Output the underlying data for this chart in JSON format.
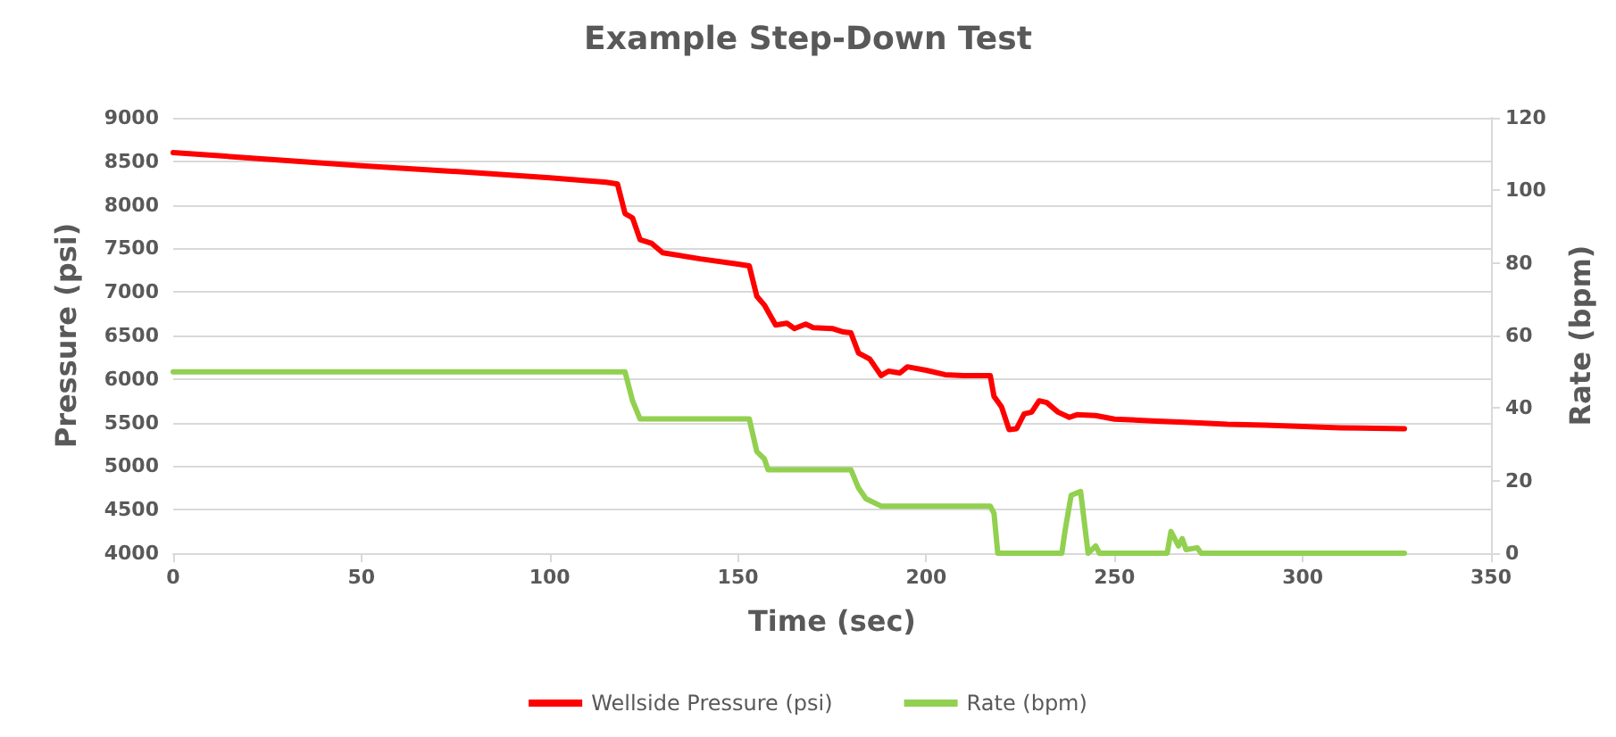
{
  "chart_data": {
    "type": "line",
    "title": "Example Step-Down Test",
    "xlabel": "Time (sec)",
    "ylabel": "Pressure (psi)",
    "y2label": "Rate (bpm)",
    "xlim": [
      0,
      350
    ],
    "xticks": [
      0,
      50,
      100,
      150,
      200,
      250,
      300,
      350
    ],
    "ylim": [
      4000,
      9000
    ],
    "yticks": [
      4000,
      4500,
      5000,
      5500,
      6000,
      6500,
      7000,
      7500,
      8000,
      8500,
      9000
    ],
    "y2lim": [
      0,
      120
    ],
    "y2ticks": [
      0,
      20,
      40,
      60,
      80,
      100,
      120
    ],
    "grid": "y",
    "legend": "bottom",
    "marker": "none",
    "line_style": "solid",
    "series": [
      {
        "name": "Wellside Pressure (psi)",
        "color": "#ff0000",
        "x": [
          0,
          20,
          50,
          80,
          100,
          115,
          118,
          120,
          122,
          124,
          127,
          130,
          140,
          150,
          153,
          155,
          157,
          160,
          163,
          165,
          168,
          170,
          175,
          178,
          180,
          182,
          185,
          188,
          190,
          193,
          195,
          200,
          205,
          210,
          217,
          218,
          220,
          222,
          224,
          226,
          228,
          230,
          232,
          235,
          238,
          240,
          245,
          250,
          260,
          270,
          280,
          290,
          310,
          327
        ],
        "values": [
          8600,
          8540,
          8450,
          8370,
          8310,
          8260,
          8240,
          7900,
          7850,
          7600,
          7560,
          7450,
          7380,
          7320,
          7300,
          6950,
          6850,
          6620,
          6640,
          6580,
          6630,
          6590,
          6580,
          6540,
          6530,
          6300,
          6230,
          6040,
          6090,
          6070,
          6140,
          6100,
          6050,
          6040,
          6040,
          5800,
          5680,
          5420,
          5430,
          5600,
          5620,
          5750,
          5730,
          5620,
          5560,
          5590,
          5580,
          5540,
          5520,
          5500,
          5480,
          5470,
          5440,
          5430
        ]
      },
      {
        "name": "Rate (bpm)",
        "color": "#92d050",
        "axis": "y2",
        "x": [
          0,
          120,
          122,
          124,
          153,
          155,
          157,
          158,
          180,
          182,
          184,
          188,
          217,
          218,
          219,
          236,
          237,
          238.5,
          241,
          243,
          245,
          246,
          264,
          265,
          267,
          268,
          269,
          272,
          273,
          327
        ],
        "values": [
          50,
          50,
          42,
          37,
          37,
          28,
          26,
          23,
          23,
          18,
          15,
          13,
          13,
          11,
          0,
          0,
          7,
          16,
          17,
          0,
          2,
          0,
          0,
          6,
          2,
          4,
          1,
          1.5,
          0,
          0
        ]
      }
    ]
  }
}
